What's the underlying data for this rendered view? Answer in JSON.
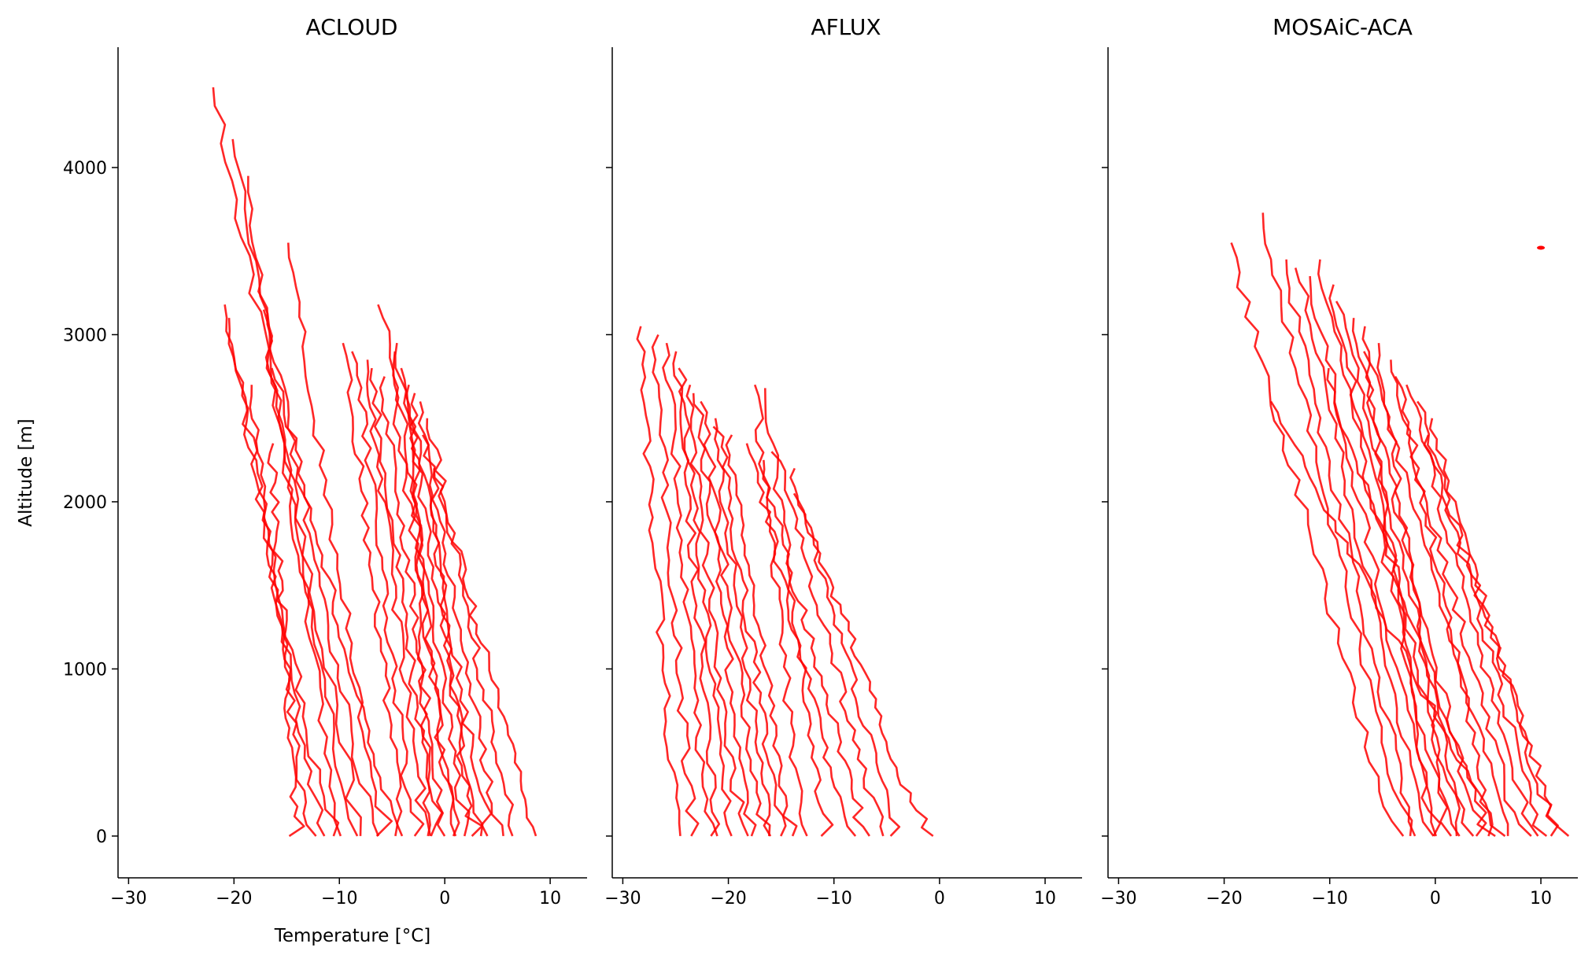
{
  "chart_data": {
    "type": "line",
    "ylabel": "Altitude [m]",
    "xlabel": "Temperature [°C]",
    "xlim": [
      -31,
      13.5
    ],
    "ylim": [
      -250,
      4720
    ],
    "xticks": [
      -30,
      -20,
      -10,
      0,
      10
    ],
    "xtick_labels": [
      "−30",
      "−20",
      "−10",
      "0",
      "10"
    ],
    "yticks": [
      0,
      1000,
      2000,
      3000,
      4000
    ],
    "ytick_labels": [
      "0",
      "1000",
      "2000",
      "3000",
      "4000"
    ],
    "grid": false,
    "line_color": "#ff0000",
    "shared_y": true,
    "panels": [
      {
        "title": "ACLOUD",
        "profiles_estimated": [
          {
            "t0": -8.0,
            "top": 4480,
            "top_t": -22.0
          },
          {
            "t0": -9.0,
            "top": 4170,
            "top_t": -20.0
          },
          {
            "t0": -10.0,
            "top": 3950,
            "top_t": -19.0
          },
          {
            "t0": -11.0,
            "top": 3180,
            "top_t": -21.0
          },
          {
            "t0": -12.0,
            "top": 3100,
            "top_t": -20.5
          },
          {
            "t0": -13.0,
            "top": 2700,
            "top_t": -18.5
          },
          {
            "t0": -14.0,
            "top": 2350,
            "top_t": -16.5
          },
          {
            "t0": -7.0,
            "top": 3150,
            "top_t": -17.0
          },
          {
            "t0": -6.0,
            "top": 3550,
            "top_t": -15.0
          },
          {
            "t0": -5.0,
            "top": 2800,
            "top_t": -16.0
          },
          {
            "t0": -4.0,
            "top": 2950,
            "top_t": -9.5
          },
          {
            "t0": -3.0,
            "top": 2900,
            "top_t": -8.5
          },
          {
            "t0": -2.0,
            "top": 2850,
            "top_t": -7.5
          },
          {
            "t0": -1.0,
            "top": 2800,
            "top_t": -7.0
          },
          {
            "t0": 0.0,
            "top": 2750,
            "top_t": -6.0
          },
          {
            "t0": 1.0,
            "top": 3180,
            "top_t": -6.0
          },
          {
            "t0": 2.0,
            "top": 2900,
            "top_t": -5.0
          },
          {
            "t0": 3.0,
            "top": 2800,
            "top_t": -4.0
          },
          {
            "t0": 4.0,
            "top": 2700,
            "top_t": -3.5
          },
          {
            "t0": 5.0,
            "top": 2600,
            "top_t": -2.5
          },
          {
            "t0": 6.5,
            "top": 2500,
            "top_t": -1.5
          },
          {
            "t0": 8.5,
            "top": 2200,
            "top_t": -1.0
          },
          {
            "t0": 0.5,
            "top": 2950,
            "top_t": -4.5
          },
          {
            "t0": -1.5,
            "top": 2650,
            "top_t": -3.0
          },
          {
            "t0": 2.5,
            "top": 2400,
            "top_t": -2.0
          }
        ]
      },
      {
        "title": "AFLUX",
        "profiles_estimated": [
          {
            "t0": -25.0,
            "top": 3050,
            "top_t": -28.5
          },
          {
            "t0": -23.5,
            "top": 3000,
            "top_t": -27.0
          },
          {
            "t0": -22.0,
            "top": 2950,
            "top_t": -26.0
          },
          {
            "t0": -21.0,
            "top": 2900,
            "top_t": -25.0
          },
          {
            "t0": -20.0,
            "top": 2800,
            "top_t": -24.5
          },
          {
            "t0": -19.0,
            "top": 2700,
            "top_t": -24.0
          },
          {
            "t0": -18.0,
            "top": 2650,
            "top_t": -23.0
          },
          {
            "t0": -17.0,
            "top": 2600,
            "top_t": -22.5
          },
          {
            "t0": -16.0,
            "top": 2500,
            "top_t": -21.5
          },
          {
            "t0": -15.0,
            "top": 2450,
            "top_t": -21.0
          },
          {
            "t0": -14.0,
            "top": 2400,
            "top_t": -20.0
          },
          {
            "t0": -13.0,
            "top": 2700,
            "top_t": -17.5
          },
          {
            "t0": -11.0,
            "top": 2680,
            "top_t": -16.5
          },
          {
            "t0": -9.0,
            "top": 2350,
            "top_t": -18.0
          },
          {
            "t0": -7.0,
            "top": 2250,
            "top_t": -17.0
          },
          {
            "t0": -5.5,
            "top": 2300,
            "top_t": -15.5
          },
          {
            "t0": -4.0,
            "top": 2200,
            "top_t": -14.0
          },
          {
            "t0": -1.5,
            "top": 2050,
            "top_t": -13.5
          }
        ]
      },
      {
        "title": "MOSAiC-ACA",
        "profiles_estimated": [
          {
            "t0": -4.0,
            "top": 3550,
            "top_t": -19.5
          },
          {
            "t0": -3.0,
            "top": 3730,
            "top_t": -16.5
          },
          {
            "t0": -2.0,
            "top": 3450,
            "top_t": -14.5
          },
          {
            "t0": -1.0,
            "top": 3400,
            "top_t": -13.0
          },
          {
            "t0": 0.0,
            "top": 3350,
            "top_t": -12.0
          },
          {
            "t0": 1.0,
            "top": 3450,
            "top_t": -11.0
          },
          {
            "t0": 2.0,
            "top": 3300,
            "top_t": -10.0
          },
          {
            "t0": 3.0,
            "top": 3200,
            "top_t": -9.0
          },
          {
            "t0": 4.0,
            "top": 3100,
            "top_t": -8.0
          },
          {
            "t0": 5.0,
            "top": 2800,
            "top_t": -10.5
          },
          {
            "t0": 6.0,
            "top": 2600,
            "top_t": -15.5
          },
          {
            "t0": 7.0,
            "top": 2900,
            "top_t": -6.5
          },
          {
            "t0": 8.0,
            "top": 2850,
            "top_t": -4.5
          },
          {
            "t0": 9.0,
            "top": 2700,
            "top_t": -2.5
          },
          {
            "t0": 10.0,
            "top": 2600,
            "top_t": -1.5
          },
          {
            "t0": 11.0,
            "top": 2500,
            "top_t": -0.5
          },
          {
            "t0": 11.8,
            "top": 2400,
            "top_t": -1.0
          },
          {
            "t0": -0.5,
            "top": 3050,
            "top_t": -7.0
          },
          {
            "t0": 1.5,
            "top": 2950,
            "top_t": -5.5
          },
          {
            "t0": 5.5,
            "top": 2750,
            "top_t": -3.5
          }
        ],
        "isolated_point": {
          "t": 10.0,
          "alt": 3520
        }
      }
    ]
  }
}
